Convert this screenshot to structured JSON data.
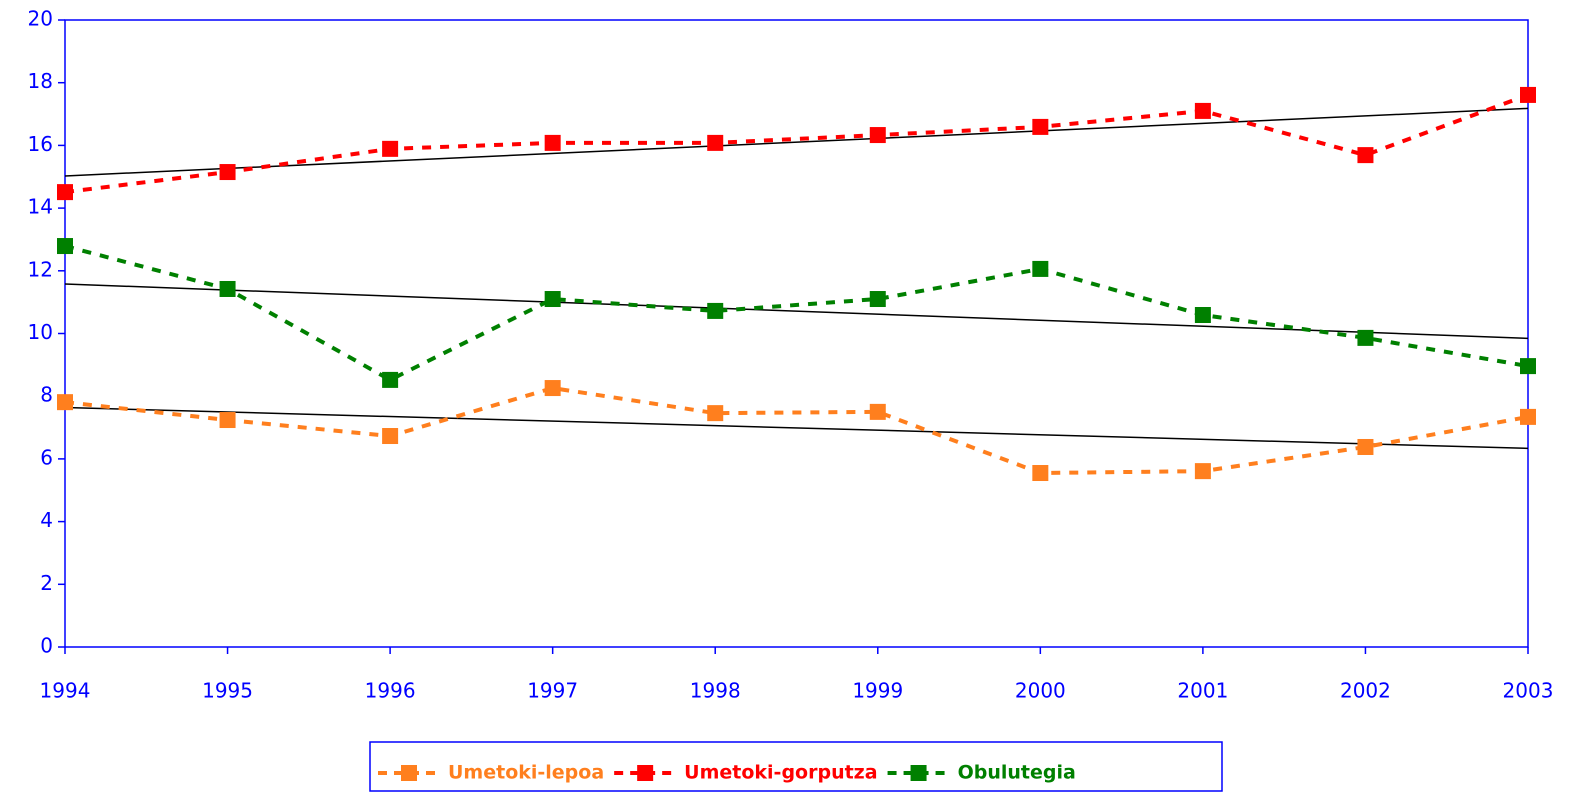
{
  "chart_data": {
    "type": "line",
    "categories": [
      "1994",
      "1995",
      "1996",
      "1997",
      "1998",
      "1999",
      "2000",
      "2001",
      "2002",
      "2003"
    ],
    "series": [
      {
        "name": "Umetoki-lepoa",
        "color": "#ff7f1e",
        "values": [
          7.81,
          7.24,
          6.73,
          8.26,
          7.46,
          7.5,
          5.55,
          5.61,
          6.38,
          7.34
        ]
      },
      {
        "name": "Umetoki-gorputza",
        "color": "#ff0000",
        "values": [
          14.51,
          15.15,
          15.89,
          16.08,
          16.08,
          16.33,
          16.59,
          17.1,
          15.69,
          17.61
        ]
      },
      {
        "name": "Obulutegia",
        "color": "#008000",
        "values": [
          12.79,
          11.42,
          8.52,
          11.1,
          10.72,
          11.1,
          12.06,
          10.59,
          9.86,
          8.96
        ]
      }
    ],
    "ylim": [
      0,
      20
    ],
    "yticks": [
      0,
      2,
      4,
      6,
      8,
      10,
      12,
      14,
      16,
      18,
      20
    ],
    "trendline": true,
    "legend": "bottom"
  }
}
